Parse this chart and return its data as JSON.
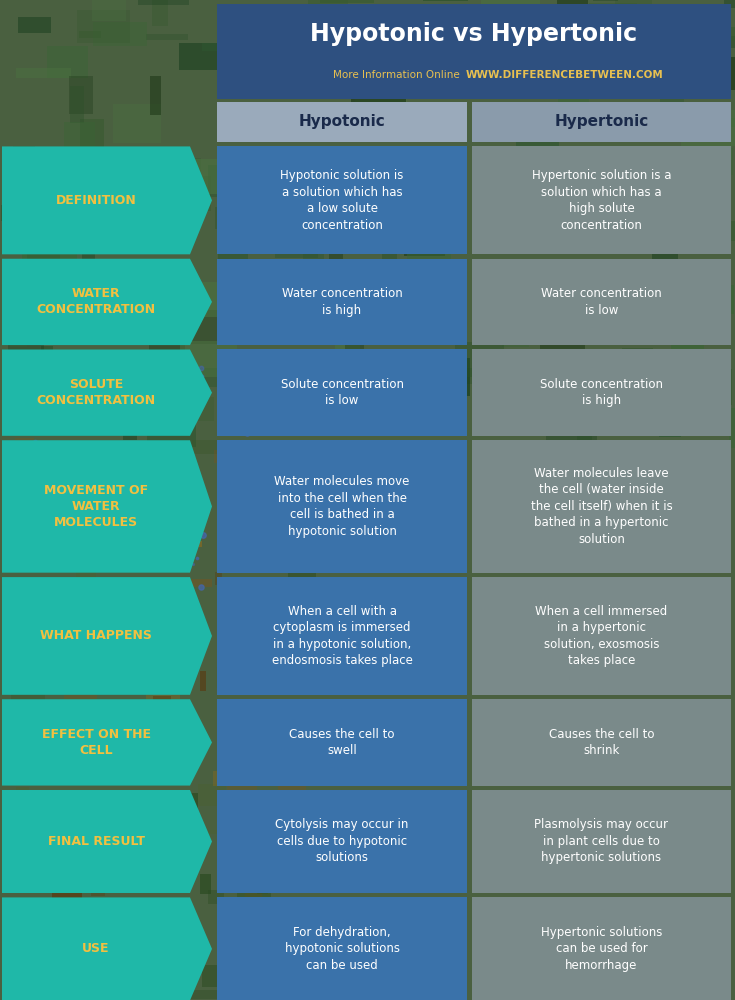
{
  "title": "Hypotonic vs Hypertonic",
  "subtitle_plain": "More Information Online",
  "subtitle_url": "WWW.DIFFERENCEBETWEEN.COM",
  "header_hypotonic": "Hypotonic",
  "header_hypertonic": "Hypertonic",
  "title_color": "#FFFFFF",
  "subtitle_plain_color": "#E8C050",
  "subtitle_url_color": "#E8C050",
  "header_bg": "#A0B4C4",
  "header_text_color": "#1A2A4A",
  "arrow_bg": "#1FB8A8",
  "arrow_text_color": "#F2C040",
  "hypo_bg": "#3A72AA",
  "hyper_bg": "#7A8A8A",
  "cell_text_color": "#FFFFFF",
  "title_bg": "#2E5080",
  "bg_color": "#4A6040",
  "fig_width": 7.35,
  "fig_height": 10.0,
  "dpi": 100,
  "rows": [
    {
      "label": "DEFINITION",
      "hypotonic": "Hypotonic solution is\na solution which has\na low solute\nconcentration",
      "hypertonic": "Hypertonic solution is a\nsolution which has a\nhigh solute\nconcentration"
    },
    {
      "label": "WATER\nCONCENTRATION",
      "hypotonic": "Water concentration\nis high",
      "hypertonic": "Water concentration\nis low"
    },
    {
      "label": "SOLUTE\nCONCENTRATION",
      "hypotonic": "Solute concentration\nis low",
      "hypertonic": "Solute concentration\nis high"
    },
    {
      "label": "MOVEMENT OF\nWATER\nMOLECULES",
      "hypotonic": "Water molecules move\ninto the cell when the\ncell is bathed in a\nhypotonic solution",
      "hypertonic": "Water molecules leave\nthe cell (water inside\nthe cell itself) when it is\nbathed in a hypertonic\nsolution"
    },
    {
      "label": "WHAT HAPPENS",
      "hypotonic": "When a cell with a\ncytoplasm is immersed\nin a hypotonic solution,\nendosmosis takes place",
      "hypertonic": "When a cell immersed\nin a hypertonic\nsolution, exosmosis\ntakes place"
    },
    {
      "label": "EFFECT ON THE\nCELL",
      "hypotonic": "Causes the cell to\nswell",
      "hypertonic": "Causes the cell to\nshrink"
    },
    {
      "label": "FINAL RESULT",
      "hypotonic": "Cytolysis may occur in\ncells due to hypotonic\nsolutions",
      "hypertonic": "Plasmolysis may occur\nin plant cells due to\nhypertonic solutions"
    },
    {
      "label": "USE",
      "hypotonic": "For dehydration,\nhypotonic solutions\ncan be used",
      "hypertonic": "Hypertonic solutions\ncan be used for\nhemorrhage"
    }
  ]
}
